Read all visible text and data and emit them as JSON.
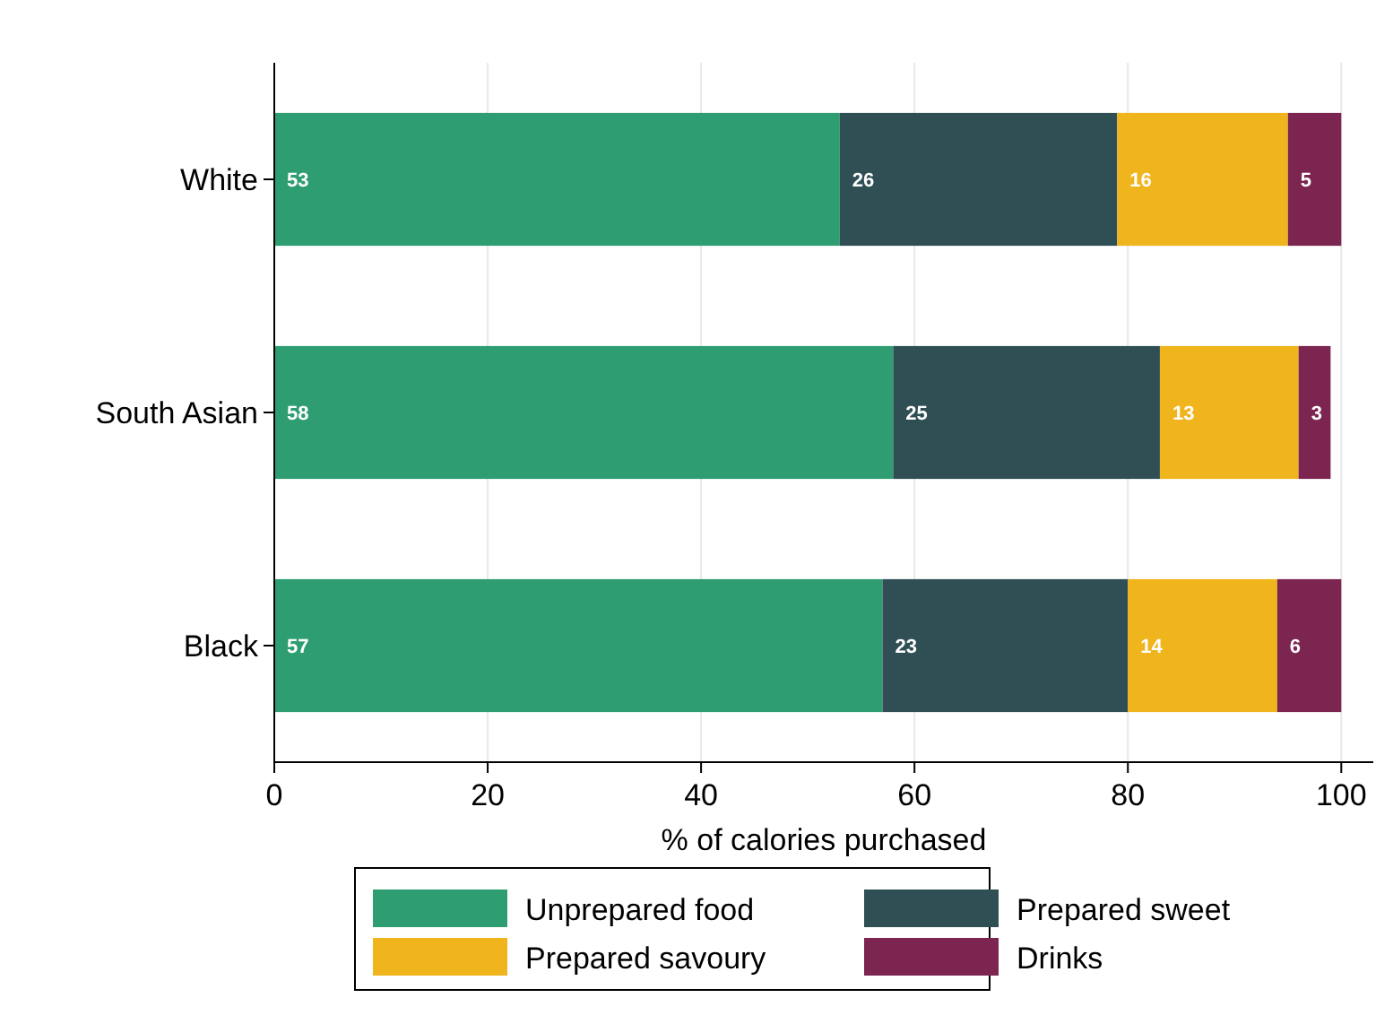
{
  "chart_data": {
    "type": "bar",
    "orientation": "horizontal",
    "stacked": true,
    "xlabel": "% of calories purchased",
    "categories": [
      "White",
      "South Asian",
      "Black"
    ],
    "series": [
      {
        "name": "Unprepared food",
        "color": "#2e9e72",
        "values": [
          53,
          58,
          57
        ]
      },
      {
        "name": "Prepared sweet",
        "color": "#2f4f55",
        "values": [
          26,
          25,
          23
        ]
      },
      {
        "name": "Prepared savoury",
        "color": "#f0b41c",
        "values": [
          16,
          13,
          14
        ]
      },
      {
        "name": "Drinks",
        "color": "#7b2550",
        "values": [
          5,
          3,
          6
        ]
      }
    ],
    "xlim": [
      0,
      103
    ],
    "xticks": [
      0,
      20,
      40,
      60,
      80,
      100
    ],
    "grid": "x",
    "data_labels": true,
    "legend": "bottom"
  }
}
